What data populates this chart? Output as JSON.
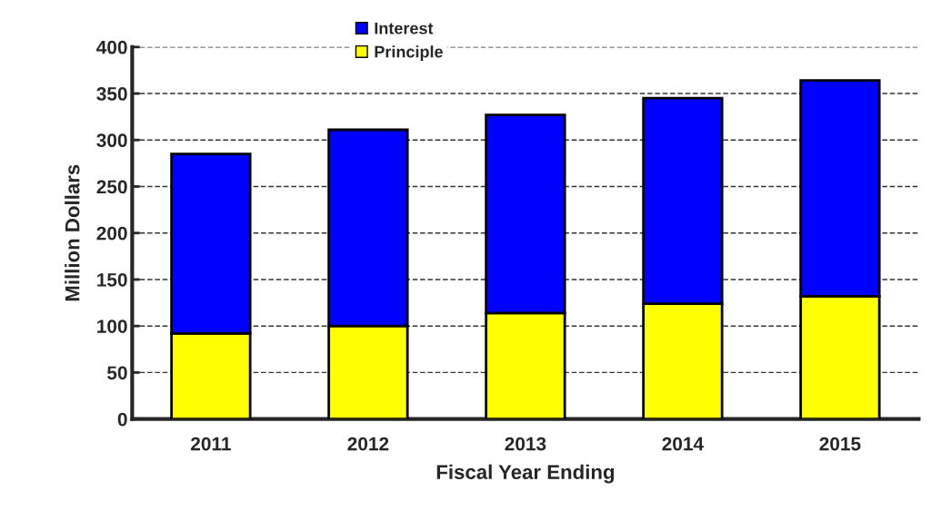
{
  "chart_data": {
    "type": "bar",
    "stacked": true,
    "xlabel": "Fiscal Year Ending",
    "ylabel": "Million Dollars",
    "categories": [
      "2011",
      "2012",
      "2013",
      "2014",
      "2015"
    ],
    "series": [
      {
        "name": "Principle",
        "color": "#ffff00",
        "values": [
          92,
          100,
          114,
          124,
          132
        ]
      },
      {
        "name": "Interest",
        "color": "#0000ff",
        "values": [
          193,
          211,
          213,
          221,
          232
        ]
      }
    ],
    "ylim": [
      0,
      400
    ],
    "yticks": [
      0,
      50,
      100,
      150,
      200,
      250,
      300,
      350,
      400
    ],
    "grid": "y",
    "legend": "top"
  }
}
